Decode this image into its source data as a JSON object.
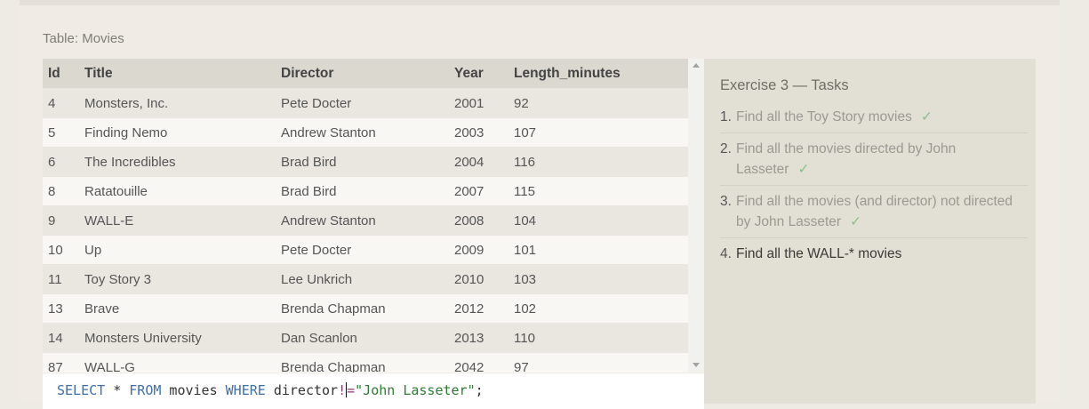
{
  "table": {
    "caption": "Table: Movies",
    "columns": [
      "Id",
      "Title",
      "Director",
      "Year",
      "Length_minutes"
    ],
    "rows": [
      [
        "4",
        "Monsters, Inc.",
        "Pete Docter",
        "2001",
        "92"
      ],
      [
        "5",
        "Finding Nemo",
        "Andrew Stanton",
        "2003",
        "107"
      ],
      [
        "6",
        "The Incredibles",
        "Brad Bird",
        "2004",
        "116"
      ],
      [
        "8",
        "Ratatouille",
        "Brad Bird",
        "2007",
        "115"
      ],
      [
        "9",
        "WALL-E",
        "Andrew Stanton",
        "2008",
        "104"
      ],
      [
        "10",
        "Up",
        "Pete Docter",
        "2009",
        "101"
      ],
      [
        "11",
        "Toy Story 3",
        "Lee Unkrich",
        "2010",
        "103"
      ],
      [
        "13",
        "Brave",
        "Brenda Chapman",
        "2012",
        "102"
      ],
      [
        "14",
        "Monsters University",
        "Dan Scanlon",
        "2013",
        "110"
      ],
      [
        "87",
        "WALL-G",
        "Brenda Chapman",
        "2042",
        "97"
      ]
    ]
  },
  "editor": {
    "tokens": {
      "select": "SELECT",
      "star": " * ",
      "from": "FROM",
      "table": " movies ",
      "where": "WHERE",
      "column": " director",
      "op_bang": "!",
      "op_eq": "=",
      "value": "\"John Lasseter\"",
      "end": ";"
    }
  },
  "tasks": {
    "title": "Exercise 3 — Tasks",
    "items": [
      {
        "num": "1.",
        "text": "Find all the Toy Story movies",
        "done": true
      },
      {
        "num": "2.",
        "text": "Find all the movies directed by John Lasseter",
        "done": true
      },
      {
        "num": "3.",
        "text": "Find all the movies (and director) not directed by John Lasseter",
        "done": true
      },
      {
        "num": "4.",
        "text": "Find all the WALL-* movies",
        "done": false
      }
    ],
    "check_mark": "✓"
  }
}
